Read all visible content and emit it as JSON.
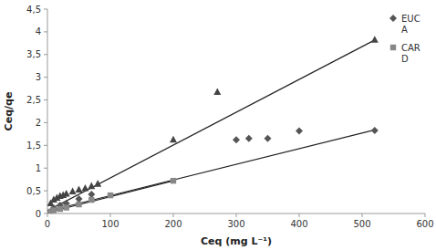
{
  "chart_data": {
    "type": "scatter",
    "xlabel": "Ceq (mg L⁻¹)",
    "ylabel": "Ceq/qe",
    "xlim": [
      0,
      600
    ],
    "ylim": [
      0,
      4.5
    ],
    "xticks": [
      0,
      100,
      200,
      300,
      400,
      500,
      600
    ],
    "yticks": [
      0,
      {
        "value": 0.5,
        "label": "0,5"
      },
      1,
      {
        "value": 1.5,
        "label": "1,5"
      },
      2,
      {
        "value": 2.5,
        "label": "2,5"
      },
      3,
      {
        "value": 3.5,
        "label": "3,5"
      },
      4,
      {
        "value": 4.5,
        "label": "4,5"
      }
    ],
    "grid": false,
    "legend": "upper right",
    "series": [
      {
        "type": "line",
        "color": "#222222",
        "x": [
          0,
          520
        ],
        "values": [
          0.06,
          3.82
        ]
      },
      {
        "type": "line",
        "color": "#222222",
        "x": [
          0,
          520
        ],
        "values": [
          0.05,
          1.84
        ]
      },
      {
        "type": "line",
        "color": "#222222",
        "x": [
          0,
          200
        ],
        "values": [
          0.02,
          0.72
        ]
      },
      {
        "type": "scatter",
        "marker": "triangle",
        "color": "#444444",
        "x": [
          5,
          10,
          15,
          20,
          25,
          30,
          40,
          50,
          60,
          70,
          80,
          200,
          270,
          520
        ],
        "values": [
          0.22,
          0.3,
          0.34,
          0.38,
          0.4,
          0.43,
          0.48,
          0.52,
          0.55,
          0.6,
          0.65,
          1.62,
          2.67,
          3.82
        ]
      },
      {
        "type": "scatter",
        "name": "EUC\nA",
        "marker": "diamond",
        "color": "#555555",
        "x": [
          10,
          20,
          30,
          50,
          70,
          300,
          320,
          350,
          400,
          520
        ],
        "values": [
          0.12,
          0.18,
          0.22,
          0.32,
          0.42,
          1.62,
          1.65,
          1.65,
          1.82,
          1.83
        ]
      },
      {
        "type": "scatter",
        "name": "CAR\nD",
        "marker": "square",
        "color": "#888888",
        "x": [
          5,
          10,
          20,
          30,
          50,
          70,
          100,
          200
        ],
        "values": [
          0.04,
          0.07,
          0.1,
          0.13,
          0.2,
          0.3,
          0.4,
          0.72
        ]
      }
    ]
  }
}
